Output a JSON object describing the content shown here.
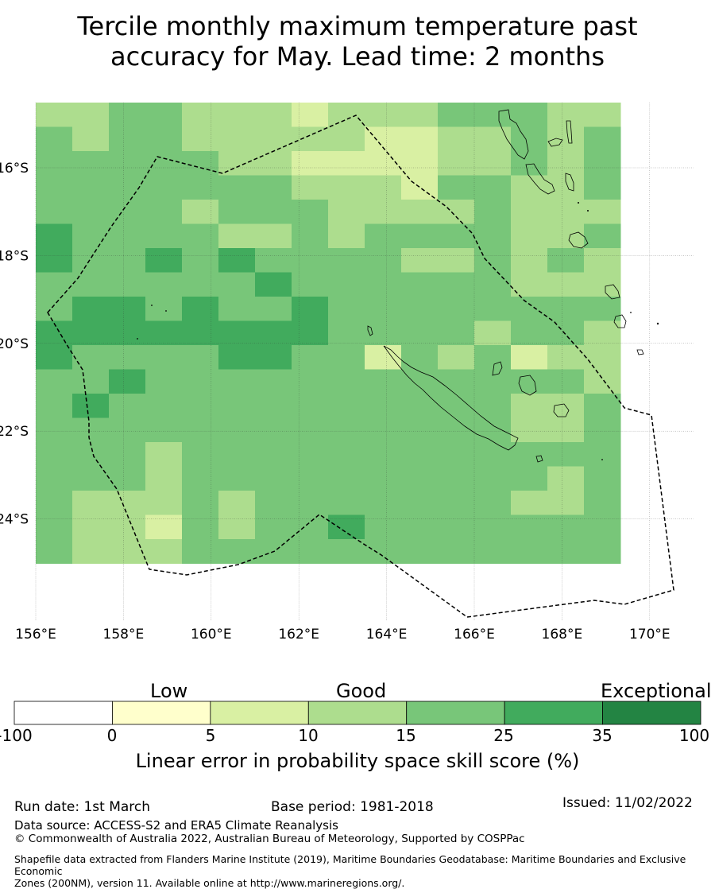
{
  "title_line1": "Tercile monthly maximum temperature past",
  "title_line2": "accuracy for May. Lead time: 2 months",
  "map": {
    "lon_labels": [
      "156°E",
      "158°E",
      "160°E",
      "162°E",
      "164°E",
      "166°E",
      "168°E",
      "170°E"
    ],
    "lat_labels": [
      "16°S",
      "18°S",
      "20°S",
      "22°S",
      "24°S"
    ],
    "lon_range": [
      156,
      171
    ],
    "lat_range": [
      -26.8,
      -14.9
    ],
    "skill_grid": [
      [
        "c",
        "c",
        "d",
        "d",
        "c",
        "c",
        "c",
        "a",
        "b",
        "c",
        "c",
        "d",
        "d",
        "d",
        "c",
        "c"
      ],
      [
        "d",
        "c",
        "d",
        "d",
        "c",
        "c",
        "c",
        "b",
        "c",
        "a",
        "a",
        "c",
        "c",
        "d",
        "c",
        "d"
      ],
      [
        "d",
        "d",
        "d",
        "d",
        "d",
        "c",
        "c",
        "a",
        "a",
        "a",
        "a",
        "c",
        "c",
        "d",
        "c",
        "d"
      ],
      [
        "d",
        "d",
        "d",
        "d",
        "d",
        "d",
        "d",
        "c",
        "c",
        "c",
        "a",
        "d",
        "d",
        "c",
        "c",
        "d"
      ],
      [
        "d",
        "d",
        "d",
        "d",
        "c",
        "d",
        "d",
        "d",
        "c",
        "c",
        "c",
        "c",
        "d",
        "c",
        "c",
        "c"
      ],
      [
        "e",
        "d",
        "d",
        "d",
        "d",
        "c",
        "c",
        "d",
        "c",
        "d",
        "d",
        "d",
        "d",
        "c",
        "c",
        "d"
      ],
      [
        "e",
        "d",
        "d",
        "e",
        "d",
        "e",
        "d",
        "d",
        "d",
        "d",
        "c",
        "c",
        "d",
        "c",
        "d",
        "c"
      ],
      [
        "d",
        "d",
        "d",
        "d",
        "d",
        "d",
        "e",
        "d",
        "d",
        "d",
        "d",
        "d",
        "d",
        "c",
        "c",
        "c"
      ],
      [
        "d",
        "e",
        "e",
        "d",
        "e",
        "d",
        "d",
        "e",
        "d",
        "d",
        "d",
        "d",
        "d",
        "d",
        "d",
        "d"
      ],
      [
        "e",
        "e",
        "e",
        "e",
        "e",
        "e",
        "e",
        "e",
        "d",
        "d",
        "d",
        "d",
        "c",
        "d",
        "d",
        "c"
      ],
      [
        "e",
        "d",
        "d",
        "d",
        "d",
        "e",
        "e",
        "d",
        "d",
        "a",
        "d",
        "c",
        "d",
        "a",
        "c",
        "c"
      ],
      [
        "d",
        "d",
        "e",
        "d",
        "d",
        "d",
        "d",
        "d",
        "d",
        "d",
        "d",
        "d",
        "d",
        "d",
        "d",
        "c"
      ],
      [
        "d",
        "e",
        "d",
        "d",
        "d",
        "d",
        "d",
        "d",
        "d",
        "d",
        "d",
        "d",
        "d",
        "c",
        "c",
        "d"
      ],
      [
        "d",
        "d",
        "d",
        "d",
        "d",
        "d",
        "d",
        "d",
        "d",
        "d",
        "d",
        "d",
        "d",
        "c",
        "c",
        "d"
      ],
      [
        "d",
        "d",
        "d",
        "c",
        "d",
        "d",
        "d",
        "d",
        "d",
        "d",
        "d",
        "d",
        "d",
        "d",
        "d",
        "d"
      ],
      [
        "d",
        "d",
        "d",
        "c",
        "d",
        "d",
        "d",
        "d",
        "d",
        "d",
        "d",
        "d",
        "d",
        "d",
        "c",
        "d"
      ],
      [
        "d",
        "c",
        "c",
        "b",
        "d",
        "c",
        "d",
        "d",
        "d",
        "d",
        "d",
        "d",
        "d",
        "c",
        "c",
        "d"
      ],
      [
        "d",
        "c",
        "c",
        "a",
        "d",
        "c",
        "d",
        "d",
        "e",
        "d",
        "d",
        "d",
        "d",
        "d",
        "d",
        "d"
      ],
      [
        "d",
        "c",
        "c",
        "b",
        "d",
        "d",
        "d",
        "d",
        "d",
        "d",
        "d",
        "d",
        "d",
        "d",
        "d",
        "d"
      ]
    ]
  },
  "colorbar": {
    "category_labels": [
      "Low",
      "Good",
      "Exceptional"
    ],
    "boundaries": [
      "-100",
      "0",
      "5",
      "10",
      "15",
      "25",
      "35",
      "100"
    ],
    "colors": [
      "#ffffff",
      "#ffffcc",
      "#d9f0a3",
      "#addd8e",
      "#78c679",
      "#41ab5d",
      "#238443"
    ],
    "title": "Linear error in probability space skill score (%)"
  },
  "footer": {
    "run_date": "Run date: 1st March",
    "base_period": "Base period: 1981-2018",
    "issued": "Issued: 11/02/2022",
    "data_source": "Data source: ACCESS-S2 and ERA5 Climate Reanalysis",
    "copyright": "© Commonwealth of Australia 2022, Australian Bureau of Meteorology, Supported by COSPPac",
    "shapefile_line1": "Shapefile data extracted from Flanders Marine Institute (2019), Maritime Boundaries Geodatabase: Maritime Boundaries and Exclusive Economic",
    "shapefile_line2": "Zones (200NM), version 11. Available online at http://www.marineregions.org/."
  }
}
